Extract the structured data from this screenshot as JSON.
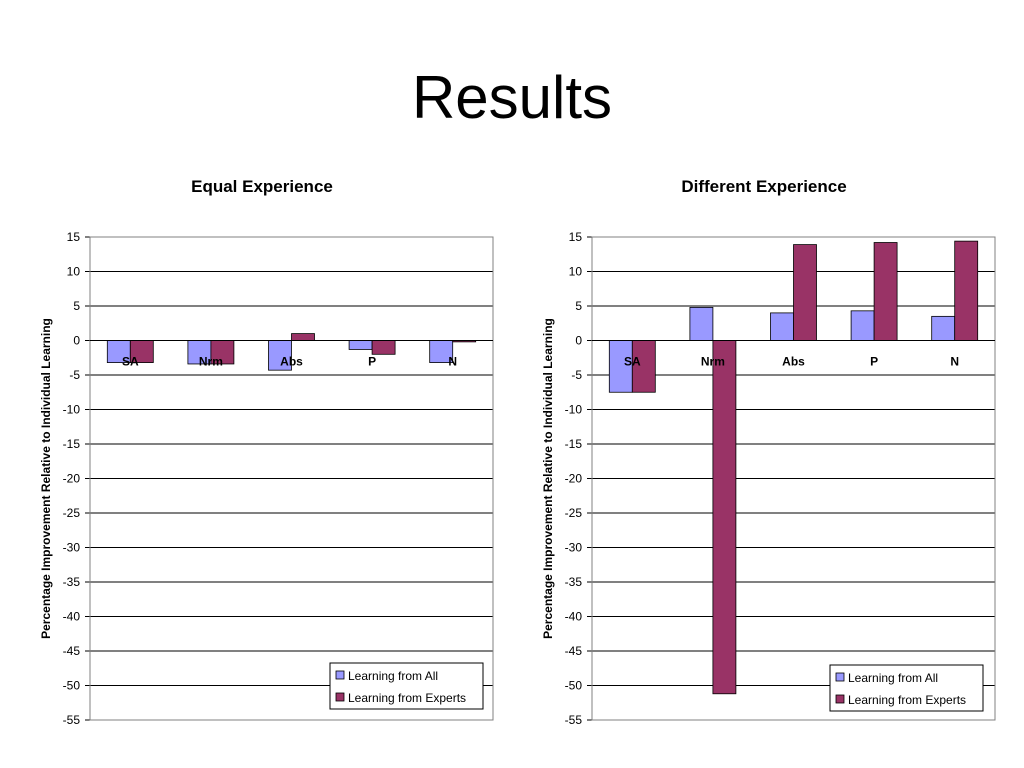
{
  "slide": {
    "title": "Results"
  },
  "colors": {
    "learning_from_all": "#9999ff",
    "learning_from_experts": "#993366"
  },
  "chart_data": [
    {
      "type": "bar",
      "title": "Equal Experience",
      "ylabel": "Percentage Improvement Relative to Individual Learning",
      "xlabel": "",
      "categories": [
        "SA",
        "Nrm",
        "Abs",
        "P",
        "N"
      ],
      "ylim": [
        -55,
        15
      ],
      "yticks": [
        15,
        10,
        5,
        0,
        -5,
        -10,
        -15,
        -20,
        -25,
        -30,
        -35,
        -40,
        -45,
        -50,
        -55
      ],
      "grid": true,
      "legend_position": "bottom-right",
      "series": [
        {
          "name": "Learning from All",
          "values": [
            -3.2,
            -3.4,
            -4.3,
            -1.3,
            -3.2
          ]
        },
        {
          "name": "Learning from Experts",
          "values": [
            -3.2,
            -3.4,
            1.0,
            -2.0,
            -0.2
          ]
        }
      ]
    },
    {
      "type": "bar",
      "title": "Different Experience",
      "ylabel": "Percentage Improvement Relative to Individual Learning",
      "xlabel": "",
      "categories": [
        "SA",
        "Nrm",
        "Abs",
        "P",
        "N"
      ],
      "ylim": [
        -55,
        15
      ],
      "yticks": [
        15,
        10,
        5,
        0,
        -5,
        -10,
        -15,
        -20,
        -25,
        -30,
        -35,
        -40,
        -45,
        -50,
        -55
      ],
      "grid": true,
      "legend_position": "bottom-right",
      "series": [
        {
          "name": "Learning from All",
          "values": [
            -7.5,
            4.8,
            4.0,
            4.3,
            3.5
          ]
        },
        {
          "name": "Learning from Experts",
          "values": [
            -7.5,
            -51.2,
            13.9,
            14.2,
            14.4
          ]
        }
      ]
    }
  ]
}
